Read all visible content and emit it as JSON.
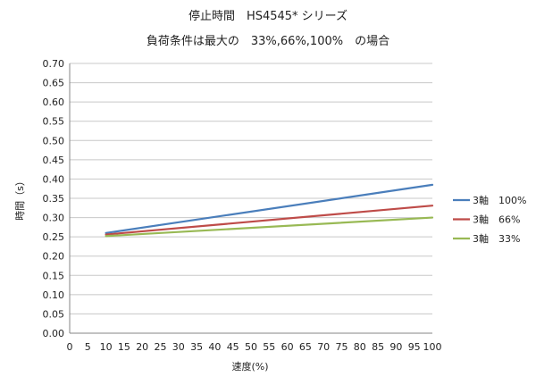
{
  "chart_data": {
    "type": "line",
    "title": "停止時間　HS4545* シリーズ",
    "subtitle": "負荷条件は最大の　33%,66%,100%　の場合",
    "xlabel": "速度(%)",
    "ylabel": "時間（s）",
    "xlim": [
      0,
      100
    ],
    "ylim": [
      0,
      0.7
    ],
    "x_ticks": [
      "0",
      "5",
      "10",
      "15",
      "20",
      "25",
      "30",
      "35",
      "40",
      "45",
      "50",
      "55",
      "60",
      "65",
      "70",
      "75",
      "80",
      "85",
      "90",
      "95",
      "100"
    ],
    "y_ticks": [
      "0.00",
      "0.05",
      "0.10",
      "0.15",
      "0.20",
      "0.25",
      "0.30",
      "0.35",
      "0.40",
      "0.45",
      "0.50",
      "0.55",
      "0.60",
      "0.65",
      "0.70"
    ],
    "grid": true,
    "legend_position": "right",
    "series": [
      {
        "name": "3軸　100%",
        "color": "#4a7ebb",
        "x": [
          10,
          100
        ],
        "y": [
          0.26,
          0.385
        ]
      },
      {
        "name": "3軸　66%",
        "color": "#be4b48",
        "x": [
          10,
          100
        ],
        "y": [
          0.256,
          0.331
        ]
      },
      {
        "name": "3軸　33%",
        "color": "#98b954",
        "x": [
          10,
          100
        ],
        "y": [
          0.252,
          0.3
        ]
      }
    ]
  }
}
